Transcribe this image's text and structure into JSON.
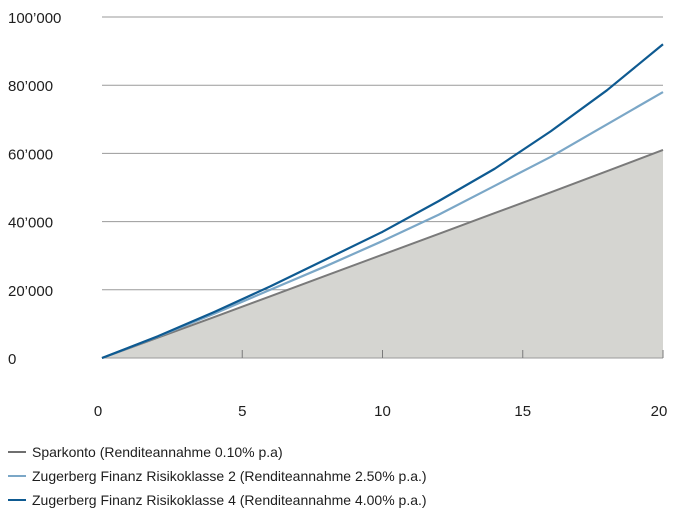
{
  "chart_data": {
    "type": "area",
    "xlim": [
      0,
      20
    ],
    "ylim": [
      0,
      100000
    ],
    "x_ticks": [
      0,
      5,
      10,
      15,
      20
    ],
    "x_tick_labels": [
      "0",
      "5",
      "10",
      "15",
      "20"
    ],
    "y_ticks": [
      0,
      20000,
      40000,
      60000,
      80000,
      100000
    ],
    "y_tick_labels": [
      "0",
      "20’000",
      "40’000",
      "60’000",
      "80’000",
      "100’000"
    ],
    "grid": "horizontal",
    "legend_position": "bottom-left",
    "x": [
      0,
      2,
      4,
      6,
      8,
      10,
      12,
      14,
      16,
      18,
      20
    ],
    "series": [
      {
        "name": "Sparkonto (Renditeannahme 0.10% p.a)",
        "style": "filled-area",
        "color": "#7a7a7a",
        "fill": "#d5d5d1",
        "values": [
          0,
          6000,
          12000,
          18100,
          24200,
          30300,
          36400,
          42500,
          48600,
          54800,
          61000
        ]
      },
      {
        "name": "Zugerberg Finanz Risikoklasse 2 (Renditeannahme 2.50% p.a.)",
        "style": "line",
        "color": "#7ba7c7",
        "values": [
          0,
          6300,
          13000,
          20000,
          27000,
          34300,
          42000,
          50500,
          59000,
          68500,
          78000
        ]
      },
      {
        "name": "Zugerberg Finanz Risikoklasse 4 (Renditeannahme 4.00% p.a.)",
        "style": "line",
        "color": "#0e5a91",
        "values": [
          0,
          6400,
          13500,
          21000,
          29000,
          37000,
          46000,
          55500,
          66500,
          78500,
          92000
        ]
      }
    ]
  },
  "legend": [
    {
      "label": "Sparkonto (Renditeannahme 0.10% p.a)",
      "color": "#6f6f6f"
    },
    {
      "label": "Zugerberg Finanz Risikoklasse 2 (Renditeannahme 2.50% p.a.)",
      "color": "#7ba7c7"
    },
    {
      "label": "Zugerberg Finanz Risikoklasse 4 (Renditeannahme 4.00% p.a.)",
      "color": "#0e5a91"
    }
  ]
}
